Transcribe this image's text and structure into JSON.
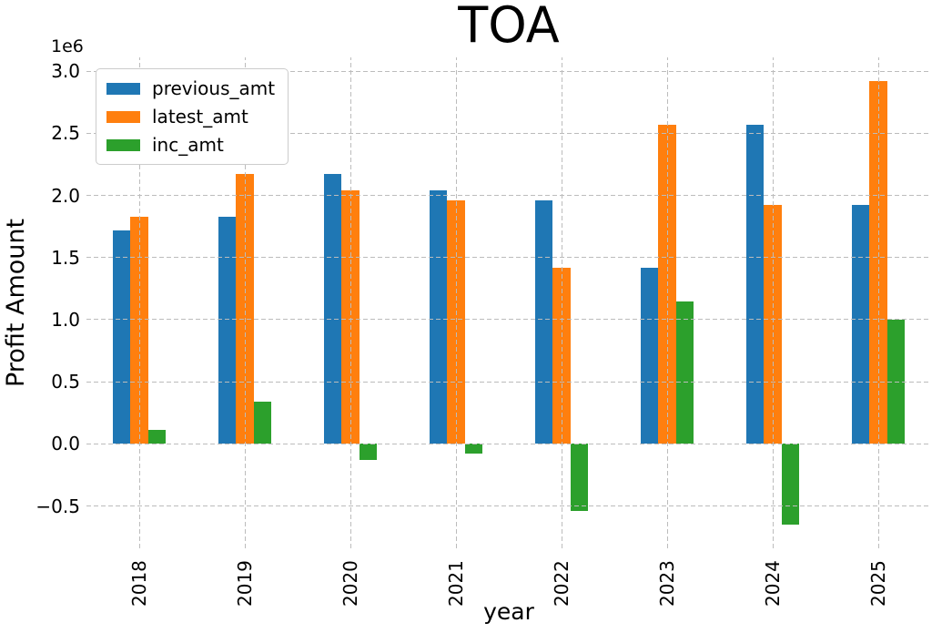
{
  "chart_data": {
    "type": "bar",
    "title": "TOA",
    "xlabel": "year",
    "ylabel": "Profit Amount",
    "offset_label": "1e6",
    "grid": true,
    "legend_position": "upper left",
    "categories": [
      "2018",
      "2019",
      "2020",
      "2021",
      "2022",
      "2023",
      "2024",
      "2025"
    ],
    "series": [
      {
        "name": "previous_amt",
        "color": "#1f77b4",
        "values": [
          1720000,
          1830000,
          2170000,
          2040000,
          1960000,
          1420000,
          2570000,
          1920000
        ]
      },
      {
        "name": "latest_amt",
        "color": "#ff7f0e",
        "values": [
          1830000,
          2170000,
          2040000,
          1960000,
          1420000,
          2570000,
          1920000,
          2920000
        ]
      },
      {
        "name": "inc_amt",
        "color": "#2ca02c",
        "values": [
          110000,
          340000,
          -130000,
          -80000,
          -540000,
          1150000,
          -650000,
          1000000
        ]
      }
    ],
    "ylim": [
      -840000,
      3110000
    ],
    "yticks": [
      {
        "value": 3000000,
        "label": "3.0"
      },
      {
        "value": 2500000,
        "label": "2.5"
      },
      {
        "value": 2000000,
        "label": "2.0"
      },
      {
        "value": 1500000,
        "label": "1.5"
      },
      {
        "value": 1000000,
        "label": "1.0"
      },
      {
        "value": 500000,
        "label": "0.5"
      },
      {
        "value": 0,
        "label": "0.0"
      },
      {
        "value": -500000,
        "label": "−0.5"
      }
    ]
  }
}
